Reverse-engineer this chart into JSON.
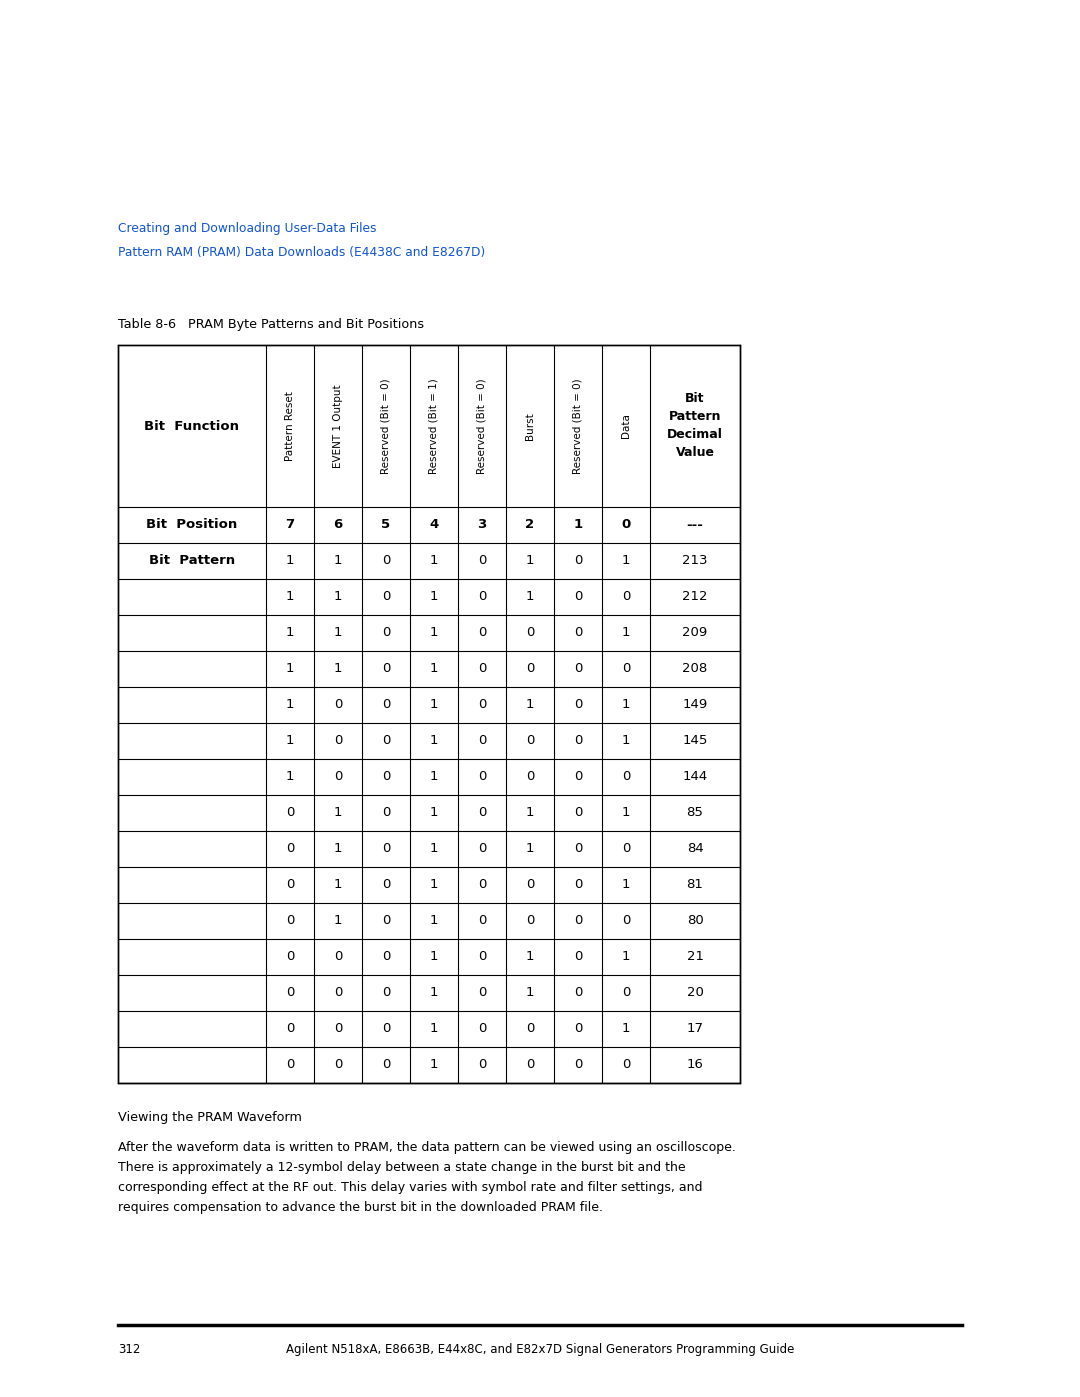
{
  "page_bg": "#ffffff",
  "breadcrumb_line1": "Creating and Downloading User-Data Files",
  "breadcrumb_line2": "Pattern RAM (PRAM) Data Downloads (E4438C and E8267D)",
  "breadcrumb_color": "#1155cc",
  "table_title": "Table 8-6   PRAM Byte Patterns and Bit Positions",
  "col_headers_rotated": [
    "Pattern Reset",
    "EVENT 1 Output",
    "Reserved (Bit = 0)",
    "Reserved (Bit = 1)",
    "Reserved (Bit = 0)",
    "Burst",
    "Reserved (Bit = 0)",
    "Data"
  ],
  "bit_position_row": [
    "7",
    "6",
    "5",
    "4",
    "3",
    "2",
    "1",
    "0",
    "---"
  ],
  "bit_patterns": [
    [
      1,
      1,
      0,
      1,
      0,
      1,
      0,
      1,
      213
    ],
    [
      1,
      1,
      0,
      1,
      0,
      1,
      0,
      0,
      212
    ],
    [
      1,
      1,
      0,
      1,
      0,
      0,
      0,
      1,
      209
    ],
    [
      1,
      1,
      0,
      1,
      0,
      0,
      0,
      0,
      208
    ],
    [
      1,
      0,
      0,
      1,
      0,
      1,
      0,
      1,
      149
    ],
    [
      1,
      0,
      0,
      1,
      0,
      0,
      0,
      1,
      145
    ],
    [
      1,
      0,
      0,
      1,
      0,
      0,
      0,
      0,
      144
    ],
    [
      0,
      1,
      0,
      1,
      0,
      1,
      0,
      1,
      85
    ],
    [
      0,
      1,
      0,
      1,
      0,
      1,
      0,
      0,
      84
    ],
    [
      0,
      1,
      0,
      1,
      0,
      0,
      0,
      1,
      81
    ],
    [
      0,
      1,
      0,
      1,
      0,
      0,
      0,
      0,
      80
    ],
    [
      0,
      0,
      0,
      1,
      0,
      1,
      0,
      1,
      21
    ],
    [
      0,
      0,
      0,
      1,
      0,
      1,
      0,
      0,
      20
    ],
    [
      0,
      0,
      0,
      1,
      0,
      0,
      0,
      1,
      17
    ],
    [
      0,
      0,
      0,
      1,
      0,
      0,
      0,
      0,
      16
    ]
  ],
  "section_heading": "Viewing the PRAM Waveform",
  "body_text_lines": [
    "After the waveform data is written to PRAM, the data pattern can be viewed using an oscilloscope.",
    "There is approximately a 12-symbol delay between a state change in the burst bit and the",
    "corresponding effect at the RF out. This delay varies with symbol rate and filter settings, and",
    "requires compensation to advance the burst bit in the downloaded PRAM file."
  ],
  "footer_page": "312",
  "footer_text": "Agilent N518xA, E8663B, E44x8C, and E82x7D Signal Generators Programming Guide"
}
